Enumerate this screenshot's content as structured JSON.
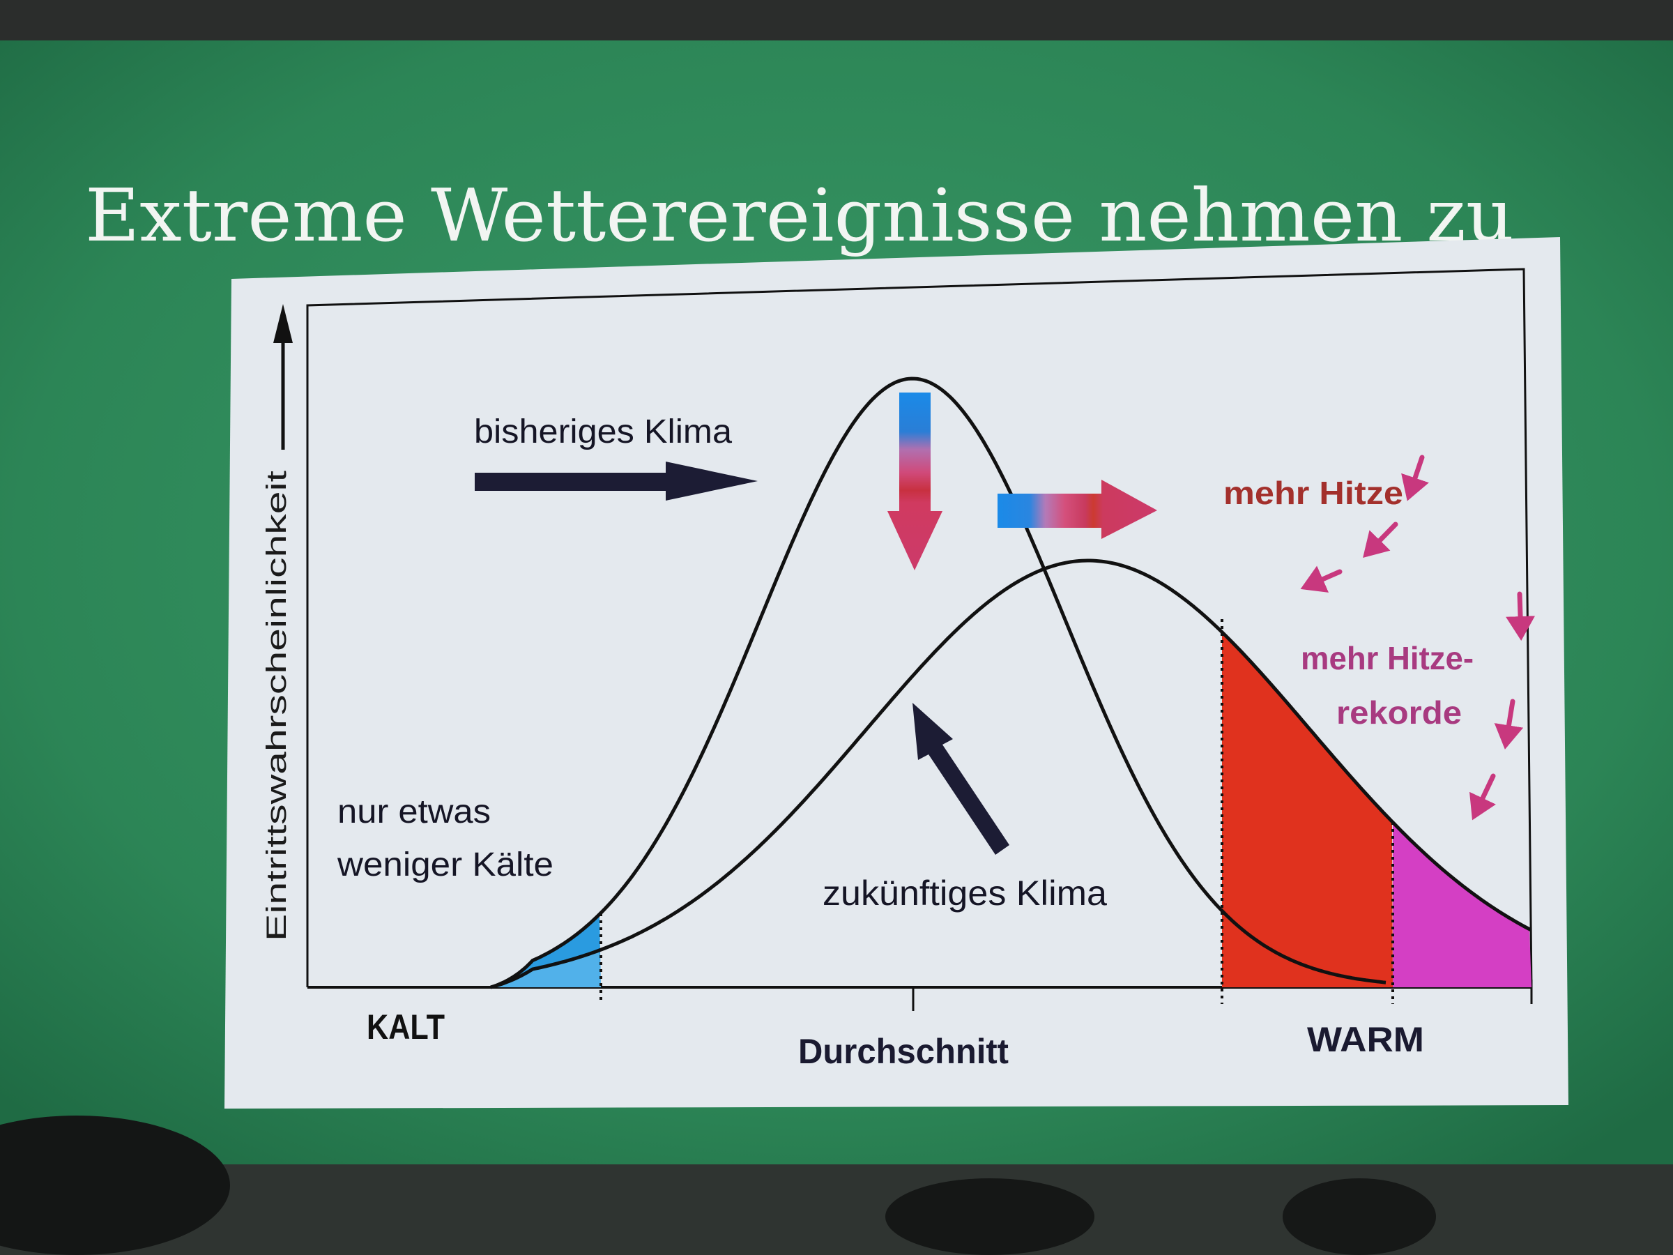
{
  "slide": {
    "title": "Extreme Wetterereignisse nehmen zu"
  },
  "diagram": {
    "y_axis_label": "Eintrittswahrscheinlichkeit",
    "x_labels": {
      "cold": "KALT",
      "average": "Durchschnitt",
      "warm": "WARM"
    },
    "annotations": {
      "past_climate": "bisheriges Klima",
      "future_climate": "zukünftiges Klima",
      "less_cold_line1": "nur etwas",
      "less_cold_line2": "weniger Kälte",
      "more_heat": "mehr Hitze",
      "more_records_line1": "mehr Hitze-",
      "more_records_line2": "rekorde"
    },
    "colors": {
      "slide_background": "#2f8a5c",
      "panel": "#e6eaee",
      "curve": "#111111",
      "cold_region": "#2a9be0",
      "heat_region": "#e0321e",
      "record_region": "#d43fc4",
      "more_heat_text": "#a3302c",
      "records_text": "#a83a80",
      "annotation_arrows": "#c8387e",
      "navy_arrow": "#1c1c34"
    }
  }
}
